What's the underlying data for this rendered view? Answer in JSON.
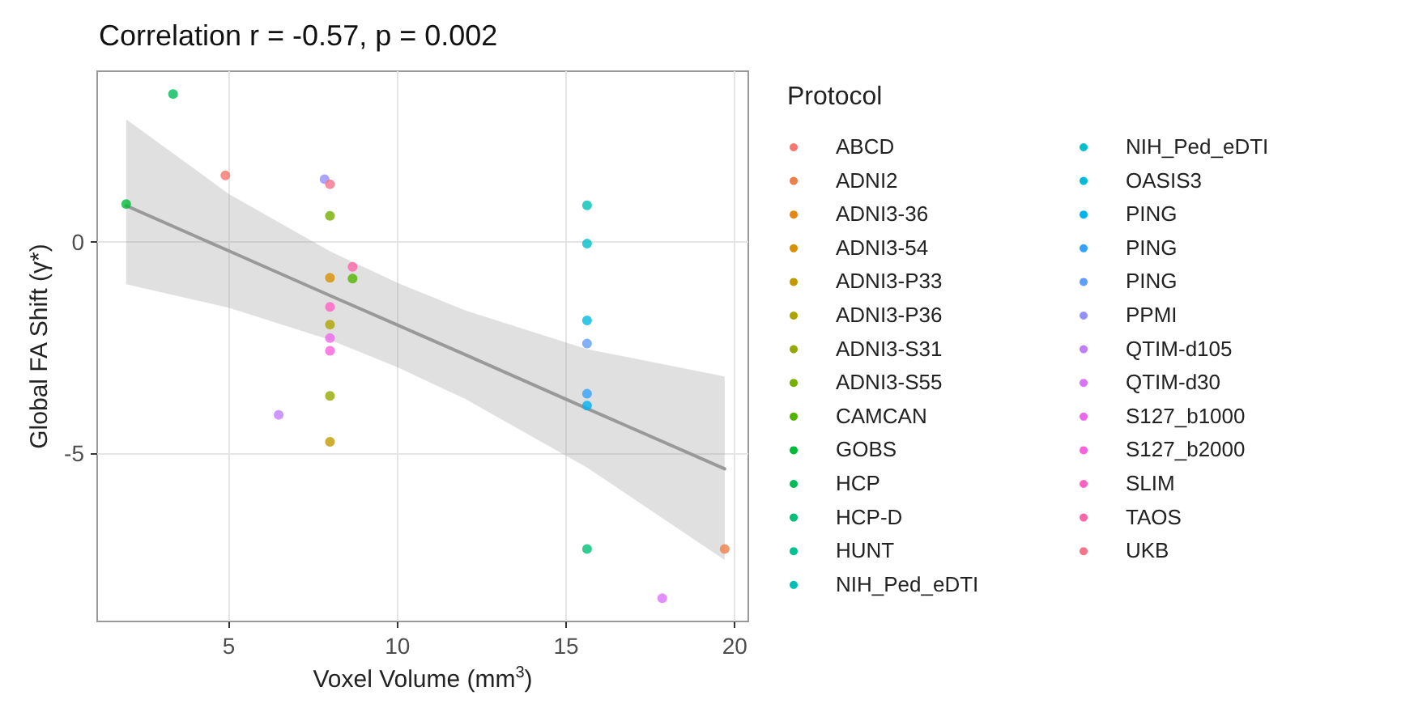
{
  "chart_data": {
    "type": "scatter",
    "title": "Correlation r = -0.57, p = 0.002",
    "xlabel": "Voxel Volume (mm$^{3}$)",
    "ylabel": "Global FA Shift (γ*)",
    "legend_title": "Protocol",
    "legend": "right",
    "grid": true,
    "marker": "circle",
    "xlim": [
      1.1,
      20.4
    ],
    "xticks": [
      5,
      10,
      15,
      20
    ],
    "ylim": [
      -9,
      4.05
    ],
    "yticks": [
      -5,
      0
    ],
    "series": [
      {
        "name": "ABCD",
        "color": "#f8766d",
        "x": [
          4.9
        ],
        "values": [
          1.58
        ]
      },
      {
        "name": "ADNI2",
        "color": "#ef7f49",
        "x": [
          19.7
        ],
        "values": [
          -7.28
        ]
      },
      {
        "name": "ADNI3-36",
        "color": "#e68613",
        "x": [
          null
        ],
        "values": [
          null
        ]
      },
      {
        "name": "ADNI3-54",
        "color": "#d89000",
        "x": [
          8
        ],
        "values": [
          -0.85
        ]
      },
      {
        "name": "ADNI3-P33",
        "color": "#c09b00",
        "x": [
          8
        ],
        "values": [
          -4.74
        ]
      },
      {
        "name": "ADNI3-P36",
        "color": "#aca300",
        "x": [
          8
        ],
        "values": [
          -1.96
        ]
      },
      {
        "name": "ADNI3-S31",
        "color": "#94a900",
        "x": [
          8
        ],
        "values": [
          -3.65
        ]
      },
      {
        "name": "ADNI3-S55",
        "color": "#75af00",
        "x": [
          8
        ],
        "values": [
          0.62
        ]
      },
      {
        "name": "CAMCAN",
        "color": "#50b400",
        "x": [
          8.67
        ],
        "values": [
          -0.87
        ]
      },
      {
        "name": "GOBS",
        "color": "#00ba38",
        "x": [
          1.96
        ],
        "values": [
          0.9
        ]
      },
      {
        "name": "HCP",
        "color": "#00bc59",
        "x": [
          3.35
        ],
        "values": [
          3.51
        ]
      },
      {
        "name": "HCP-D",
        "color": "#00bf76",
        "x": [
          15.62
        ],
        "values": [
          -7.28
        ]
      },
      {
        "name": "HUNT",
        "color": "#00c094",
        "x": [
          null
        ],
        "values": [
          null
        ]
      },
      {
        "name": "NIH_Ped_eDTI",
        "color": "#00c0b5",
        "x": [
          15.62
        ],
        "values": [
          0.87
        ]
      },
      {
        "name": "NIH_Ped_eDTI",
        "color": "#00becc",
        "x": [
          15.62
        ],
        "values": [
          -0.04
        ]
      },
      {
        "name": "OASIS3",
        "color": "#00bade",
        "x": [
          15.62
        ],
        "values": [
          -1.86
        ]
      },
      {
        "name": "PING",
        "color": "#00b2f2",
        "x": [
          15.62
        ],
        "values": [
          -3.88
        ]
      },
      {
        "name": "PING",
        "color": "#35a2ff",
        "x": [
          15.62
        ],
        "values": [
          -3.6
        ]
      },
      {
        "name": "PING",
        "color": "#619cff",
        "x": [
          15.62
        ],
        "values": [
          -2.41
        ]
      },
      {
        "name": "PPMI",
        "color": "#9590ff",
        "x": [
          7.84
        ],
        "values": [
          1.49
        ]
      },
      {
        "name": "QTIM-d105",
        "color": "#c07dff",
        "x": [
          6.48
        ],
        "values": [
          -4.1
        ]
      },
      {
        "name": "QTIM-d30",
        "color": "#d973fc",
        "x": [
          17.85
        ],
        "values": [
          -8.45
        ]
      },
      {
        "name": "S127_b1000",
        "color": "#ee68ea",
        "x": [
          8
        ],
        "values": [
          -2.28
        ]
      },
      {
        "name": "S127_b2000",
        "color": "#fa62db",
        "x": [
          8
        ],
        "values": [
          -2.58
        ]
      },
      {
        "name": "SLIM",
        "color": "#ff61c3",
        "x": [
          8
        ],
        "values": [
          -1.54
        ]
      },
      {
        "name": "TAOS",
        "color": "#ff65a9",
        "x": [
          8.67
        ],
        "values": [
          -0.59
        ]
      },
      {
        "name": "UKB",
        "color": "#f8728a",
        "x": [
          8
        ],
        "values": [
          1.37
        ]
      },
      {
        "type": "line",
        "marker": "none",
        "color": "#999999",
        "x": [
          1.96,
          5,
          8,
          10,
          12,
          15.62,
          19.7
        ],
        "values": [
          0.86,
          -0.21,
          -1.27,
          -1.97,
          -2.67,
          -3.95,
          -5.38
        ],
        "lower": [
          -1.0,
          -1.56,
          -2.32,
          -2.97,
          -3.72,
          -5.35,
          -7.54
        ],
        "upper": [
          2.91,
          1.14,
          -0.22,
          -0.97,
          -1.62,
          -2.54,
          -3.19
        ]
      }
    ]
  }
}
